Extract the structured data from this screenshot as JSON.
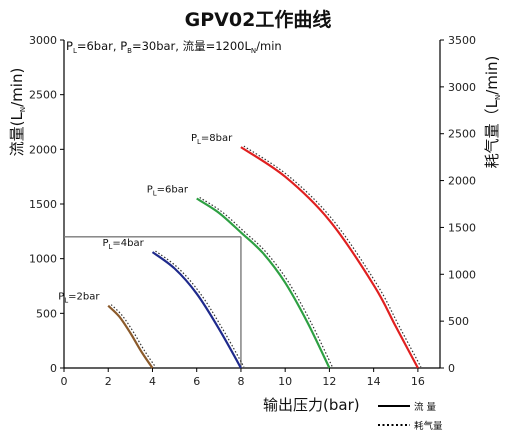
{
  "chart_data": {
    "type": "line",
    "title": "GPV02工作曲线",
    "annotation": {
      "p": "P",
      "l_sub": "L",
      "l_val": "=6bar, ",
      "b_sub": "B",
      "b_val": "=30bar, 流量=1200L",
      "n_sub": "N",
      "n_val": "/min"
    },
    "xlabel": "输出压力(bar)",
    "ylabel_left": {
      "main": "流量(L",
      "sub": "N",
      "end": "/min)"
    },
    "ylabel_right": {
      "main": "耗气量（L",
      "sub": "N",
      "end": "/min)"
    },
    "xlim": [
      0,
      17
    ],
    "xticks": [
      "0",
      "2",
      "4",
      "6",
      "8",
      "10",
      "12",
      "14",
      "16"
    ],
    "ylim_left": [
      0,
      3000
    ],
    "yticks_left": [
      "0",
      "500",
      "1000",
      "1500",
      "2000",
      "2500",
      "3000"
    ],
    "ylim_right": [
      0,
      3500
    ],
    "yticks_right": [
      "0",
      "500",
      "1000",
      "1500",
      "2000",
      "2500",
      "3000",
      "3500"
    ],
    "guide": {
      "x": 8,
      "y": 1200
    },
    "legend": {
      "flow": "流  量",
      "air": "耗气量"
    },
    "series": [
      {
        "name": "PL=2bar",
        "label_p": "P",
        "label_sub": "L",
        "label_rest": "=2bar",
        "color": "#8B5A2B",
        "x": [
          2.0,
          2.5,
          3.0,
          3.5,
          4.0
        ],
        "y": [
          570,
          470,
          320,
          150,
          0
        ]
      },
      {
        "name": "PL=4bar",
        "label_p": "P",
        "label_sub": "L",
        "label_rest": "=4bar",
        "color": "#1F2A8C",
        "x": [
          4.0,
          5.0,
          6.0,
          7.0,
          8.0
        ],
        "y": [
          1060,
          910,
          680,
          360,
          0
        ]
      },
      {
        "name": "PL=6bar",
        "label_p": "P",
        "label_sub": "L",
        "label_rest": "=6bar",
        "color": "#2EA043",
        "x": [
          6.0,
          7.0,
          8.0,
          9.0,
          10.0,
          11.0,
          12.0
        ],
        "y": [
          1550,
          1420,
          1240,
          1050,
          780,
          420,
          0
        ]
      },
      {
        "name": "PL=8bar",
        "label_p": "P",
        "label_sub": "L",
        "label_rest": "=8bar",
        "color": "#E02020",
        "x": [
          8.0,
          10.0,
          12.0,
          14.0,
          15.0,
          16.0
        ],
        "y": [
          2020,
          1750,
          1350,
          760,
          380,
          0
        ]
      }
    ]
  }
}
